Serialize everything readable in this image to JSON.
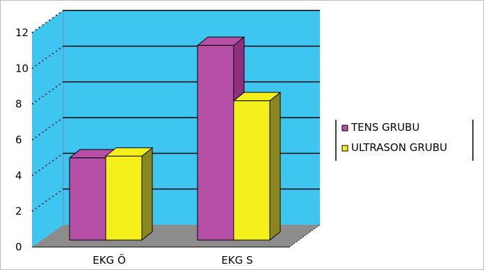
{
  "chart_data": {
    "type": "bar",
    "title": "",
    "xlabel": "",
    "ylabel": "",
    "categories": [
      "EKG Ö",
      "EKG S"
    ],
    "series": [
      {
        "name": "TENS GRUBU",
        "values": [
          4.6,
          10.9
        ]
      },
      {
        "name": "ULTRASON GRUBU",
        "values": [
          4.7,
          7.8
        ]
      }
    ],
    "ylim": [
      0,
      12
    ],
    "yticks": [
      "0",
      "2",
      "4",
      "6",
      "8",
      "10",
      "12"
    ],
    "grid": true,
    "legend_position": "right",
    "three_d": true,
    "colors": {
      "wall": "#3ec6f0",
      "floor": "#8c8c8c",
      "series": [
        "#b64fa6",
        "#f5f01c"
      ],
      "series_side": [
        "#8e2f80",
        "#8a8620"
      ]
    }
  }
}
